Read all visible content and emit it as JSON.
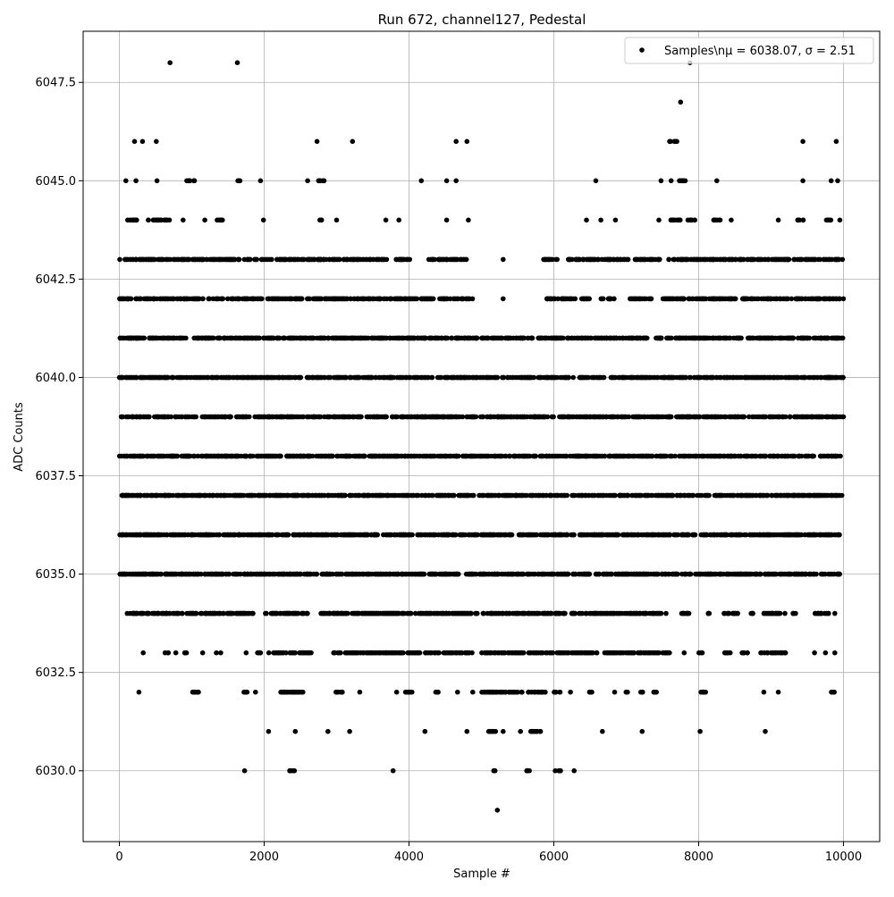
{
  "chart_data": {
    "type": "scatter",
    "title": "Run 672, channel127, Pedestal",
    "xlabel": "Sample #",
    "ylabel": "ADC Counts",
    "xlim": [
      -500,
      10500
    ],
    "ylim": [
      6028.2,
      6048.8
    ],
    "x_ticks": [
      0,
      2000,
      4000,
      6000,
      8000,
      10000
    ],
    "x_tick_labels": [
      "0",
      "2000",
      "4000",
      "6000",
      "8000",
      "10000"
    ],
    "y_ticks": [
      6030.0,
      6032.5,
      6035.0,
      6037.5,
      6040.0,
      6042.5,
      6045.0,
      6047.5
    ],
    "y_tick_labels": [
      "6030.0",
      "6032.5",
      "6035.0",
      "6037.5",
      "6040.0",
      "6042.5",
      "6045.0",
      "6047.5"
    ],
    "grid": true,
    "legend_position": "top-right",
    "series": [
      {
        "name": "Samples\\nμ = 6038.07, σ = 2.51",
        "color": "#000000",
        "marker": "circle",
        "sample_count": 10000,
        "mean": 6038.07,
        "std": 2.51,
        "level_ranges": [
          {
            "y": 6029,
            "x_ranges": [
              [
                5220,
                5220
              ]
            ]
          },
          {
            "y": 6030,
            "x_ranges": [
              [
                1730,
                1730
              ],
              [
                2350,
                2430
              ],
              [
                3780,
                3780
              ],
              [
                5150,
                5200
              ],
              [
                5610,
                5690
              ],
              [
                6020,
                6110
              ],
              [
                6280,
                6280
              ]
            ]
          },
          {
            "y": 6031,
            "x_ranges": [
              [
                2060,
                2060
              ],
              [
                2430,
                2430
              ],
              [
                2880,
                2880
              ],
              [
                3180,
                3180
              ],
              [
                4220,
                4220
              ],
              [
                4800,
                4800
              ],
              [
                5100,
                5200
              ],
              [
                5300,
                5300
              ],
              [
                5540,
                5540
              ],
              [
                5680,
                5820
              ],
              [
                6670,
                6670
              ],
              [
                7220,
                7220
              ],
              [
                8020,
                8020
              ],
              [
                8920,
                8920
              ]
            ]
          },
          {
            "y": 6032,
            "x_ranges": [
              [
                270,
                270
              ],
              [
                1000,
                1100
              ],
              [
                1700,
                1780
              ],
              [
                1880,
                1880
              ],
              [
                2200,
                2560
              ],
              [
                2980,
                3080
              ],
              [
                3320,
                3320
              ],
              [
                3830,
                3830
              ],
              [
                3950,
                4050
              ],
              [
                4360,
                4420
              ],
              [
                4670,
                4670
              ],
              [
                4880,
                4880
              ],
              [
                5000,
                5900
              ],
              [
                6000,
                6100
              ],
              [
                6230,
                6230
              ],
              [
                6480,
                6540
              ],
              [
                6840,
                6840
              ],
              [
                6990,
                7030
              ],
              [
                7200,
                7250
              ],
              [
                7360,
                7420
              ],
              [
                8000,
                8100
              ],
              [
                8900,
                8900
              ],
              [
                9100,
                9100
              ],
              [
                9820,
                9880
              ]
            ]
          },
          {
            "y": 6033,
            "x_ranges": [
              [
                330,
                330
              ],
              [
                630,
                690
              ],
              [
                780,
                780
              ],
              [
                900,
                950
              ],
              [
                1150,
                1150
              ],
              [
                1340,
                1340
              ],
              [
                1400,
                1400
              ],
              [
                1750,
                1750
              ],
              [
                1850,
                1950
              ],
              [
                2050,
                2650
              ],
              [
                2950,
                4900
              ],
              [
                5000,
                6600
              ],
              [
                6650,
                7600
              ],
              [
                7800,
                7800
              ],
              [
                8000,
                8050
              ],
              [
                8350,
                8450
              ],
              [
                8600,
                8700
              ],
              [
                8850,
                9200
              ],
              [
                9600,
                9600
              ],
              [
                9750,
                9750
              ],
              [
                9880,
                9880
              ]
            ]
          },
          {
            "y": 6034,
            "x_ranges": [
              [
                100,
                1850
              ],
              [
                2000,
                2600
              ],
              [
                2780,
                7500
              ],
              [
                7550,
                7550
              ],
              [
                7750,
                7900
              ],
              [
                8100,
                8150
              ],
              [
                8350,
                8550
              ],
              [
                8700,
                8750
              ],
              [
                8900,
                9200
              ],
              [
                9300,
                9350
              ],
              [
                9600,
                9800
              ],
              [
                9880,
                9880
              ]
            ]
          },
          {
            "y": 6035,
            "x_ranges": [
              [
                0,
                9950
              ]
            ]
          },
          {
            "y": 6036,
            "x_ranges": [
              [
                0,
                9950
              ]
            ]
          },
          {
            "y": 6037,
            "x_ranges": [
              [
                0,
                10000
              ]
            ]
          },
          {
            "y": 6038,
            "x_ranges": [
              [
                0,
                10000
              ]
            ]
          },
          {
            "y": 6039,
            "x_ranges": [
              [
                0,
                10000
              ]
            ]
          },
          {
            "y": 6040,
            "x_ranges": [
              [
                0,
                10000
              ]
            ]
          },
          {
            "y": 6041,
            "x_ranges": [
              [
                0,
                10000
              ]
            ]
          },
          {
            "y": 6042,
            "x_ranges": [
              [
                0,
                4900
              ],
              [
                5300,
                5300
              ],
              [
                5900,
                6500
              ],
              [
                6650,
                6850
              ],
              [
                7050,
                7350
              ],
              [
                7500,
                10000
              ]
            ]
          },
          {
            "y": 6043,
            "x_ranges": [
              [
                0,
                1900
              ],
              [
                1950,
                3700
              ],
              [
                3800,
                4050
              ],
              [
                4250,
                4800
              ],
              [
                5300,
                5300
              ],
              [
                5850,
                6050
              ],
              [
                6200,
                7600
              ],
              [
                7650,
                10000
              ]
            ]
          },
          {
            "y": 6044,
            "x_ranges": [
              [
                100,
                250
              ],
              [
                400,
                700
              ],
              [
                880,
                880
              ],
              [
                1180,
                1180
              ],
              [
                1350,
                1450
              ],
              [
                1990,
                1990
              ],
              [
                2750,
                2800
              ],
              [
                3000,
                3000
              ],
              [
                3680,
                3680
              ],
              [
                3860,
                3860
              ],
              [
                4520,
                4520
              ],
              [
                4820,
                4820
              ],
              [
                6450,
                6450
              ],
              [
                6650,
                6650
              ],
              [
                6850,
                6850
              ],
              [
                7450,
                7450
              ],
              [
                7580,
                7750
              ],
              [
                7850,
                7950
              ],
              [
                8200,
                8300
              ],
              [
                8450,
                8450
              ],
              [
                9100,
                9100
              ],
              [
                9350,
                9450
              ],
              [
                9750,
                9830
              ],
              [
                9950,
                9950
              ]
            ]
          },
          {
            "y": 6045,
            "x_ranges": [
              [
                90,
                90
              ],
              [
                230,
                230
              ],
              [
                520,
                520
              ],
              [
                930,
                1040
              ],
              [
                1630,
                1670
              ],
              [
                1950,
                1950
              ],
              [
                2600,
                2600
              ],
              [
                2750,
                2830
              ],
              [
                4170,
                4170
              ],
              [
                4520,
                4520
              ],
              [
                4650,
                4650
              ],
              [
                6580,
                6580
              ],
              [
                7480,
                7480
              ],
              [
                7620,
                7620
              ],
              [
                7720,
                7820
              ],
              [
                8250,
                8250
              ],
              [
                9440,
                9440
              ],
              [
                9830,
                9830
              ],
              [
                9920,
                9920
              ]
            ]
          },
          {
            "y": 6046,
            "x_ranges": [
              [
                210,
                210
              ],
              [
                320,
                320
              ],
              [
                510,
                510
              ],
              [
                2730,
                2730
              ],
              [
                3220,
                3220
              ],
              [
                4650,
                4650
              ],
              [
                4800,
                4800
              ],
              [
                7600,
                7700
              ],
              [
                9440,
                9440
              ],
              [
                9900,
                9900
              ]
            ]
          },
          {
            "y": 6047,
            "x_ranges": [
              [
                7750,
                7750
              ]
            ]
          },
          {
            "y": 6048,
            "x_ranges": [
              [
                700,
                700
              ],
              [
                1630,
                1630
              ],
              [
                7880,
                7880
              ]
            ]
          }
        ]
      }
    ]
  }
}
